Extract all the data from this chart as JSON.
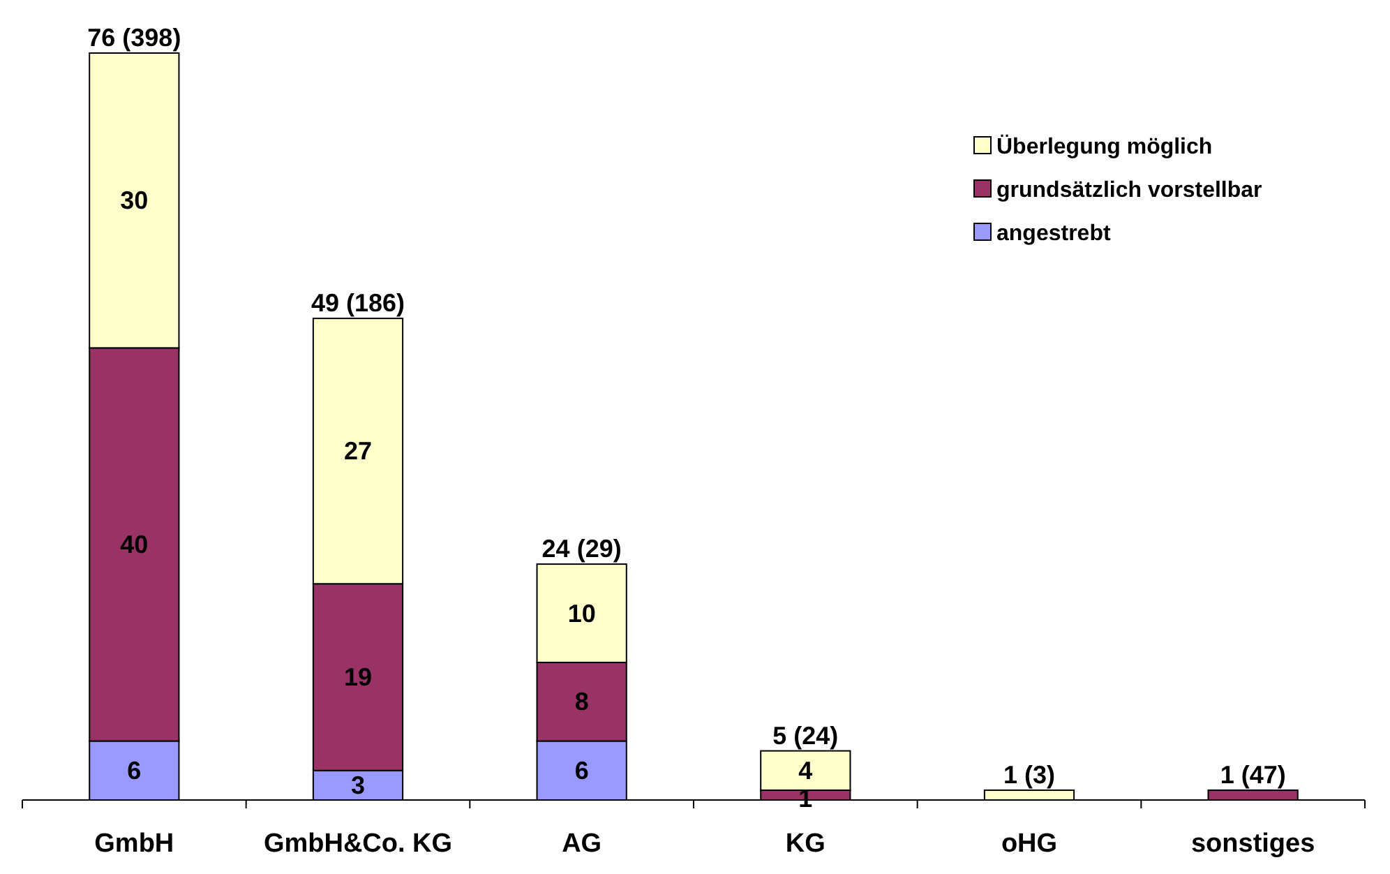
{
  "chart_data": {
    "type": "bar",
    "stacked": true,
    "categories": [
      "GmbH",
      "GmbH&Co. KG",
      "AG",
      "KG",
      "oHG",
      "sonstiges"
    ],
    "series": [
      {
        "name": "angestrebt",
        "color": "#9999ff",
        "values": [
          6,
          3,
          6,
          0,
          0,
          0
        ],
        "value_labels": [
          "6",
          "3",
          "6",
          null,
          null,
          null
        ]
      },
      {
        "name": "grundsätzlich vorstellbar",
        "color": "#993366",
        "values": [
          40,
          19,
          8,
          1,
          0,
          1
        ],
        "value_labels": [
          "40",
          "19",
          "8",
          "1",
          null,
          null
        ]
      },
      {
        "name": "Überlegung möglich",
        "color": "#ffffcc",
        "values": [
          30,
          27,
          10,
          4,
          1,
          0
        ],
        "value_labels": [
          "30",
          "27",
          "10",
          "4",
          null,
          null
        ]
      }
    ],
    "totals": [
      "76 (398)",
      "49 (186)",
      "24 (29)",
      "5 (24)",
      "1 (3)",
      "1 (47)"
    ],
    "legend": "top right"
  }
}
